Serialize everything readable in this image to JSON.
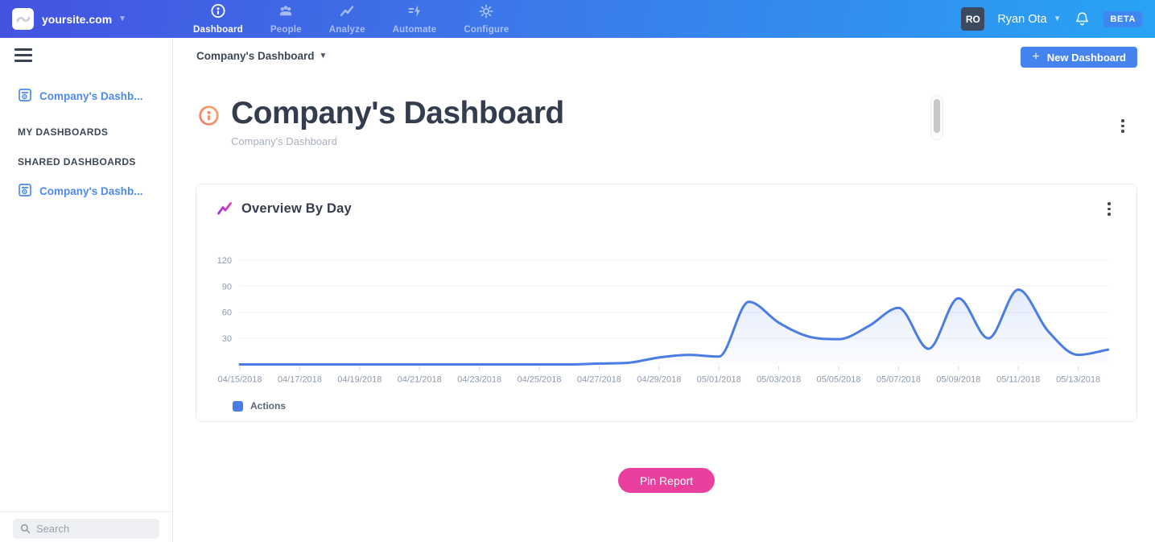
{
  "topnav": {
    "site": "yoursite.com",
    "items": [
      {
        "label": "Dashboard",
        "icon": "gauge-icon",
        "active": true
      },
      {
        "label": "People",
        "icon": "people-icon",
        "active": false
      },
      {
        "label": "Analyze",
        "icon": "trend-icon",
        "active": false
      },
      {
        "label": "Automate",
        "icon": "automation-icon",
        "active": false
      },
      {
        "label": "Configure",
        "icon": "gear-icon",
        "active": false
      }
    ],
    "user": {
      "initials": "RO",
      "name": "Ryan Ota"
    },
    "beta_label": "BETA"
  },
  "sidebar": {
    "pinned_item": {
      "label": "Company's Dashb...",
      "icon": "dashboard-report-icon"
    },
    "sections": [
      {
        "title": "MY DASHBOARDS",
        "items": []
      },
      {
        "title": "SHARED DASHBOARDS",
        "items": [
          {
            "label": "Company's Dashb...",
            "icon": "dashboard-report-icon"
          }
        ]
      }
    ],
    "search_placeholder": "Search"
  },
  "main": {
    "breadcrumb": "Company's Dashboard",
    "new_dashboard": {
      "plus": "+",
      "label": "New Dashboard"
    },
    "title": "Company's Dashboard",
    "subtitle": "Company's Dashboard",
    "pin_report_label": "Pin Report"
  },
  "card": {
    "title": "Overview By Day"
  },
  "chart_data": {
    "type": "line",
    "title": "Overview By Day",
    "x": [
      "04/15/2018",
      "04/16/2018",
      "04/17/2018",
      "04/18/2018",
      "04/19/2018",
      "04/20/2018",
      "04/21/2018",
      "04/22/2018",
      "04/23/2018",
      "04/24/2018",
      "04/25/2018",
      "04/26/2018",
      "04/27/2018",
      "04/28/2018",
      "04/29/2018",
      "04/30/2018",
      "05/01/2018",
      "05/02/2018",
      "05/03/2018",
      "05/04/2018",
      "05/05/2018",
      "05/06/2018",
      "05/07/2018",
      "05/08/2018",
      "05/09/2018",
      "05/10/2018",
      "05/11/2018",
      "05/12/2018",
      "05/13/2018",
      "05/14/2018"
    ],
    "x_tick_every": 2,
    "series": [
      {
        "name": "Actions",
        "color": "#4a7de4",
        "values": [
          0,
          0,
          0,
          0,
          0,
          0,
          0,
          0,
          0,
          0,
          0,
          0,
          1,
          2,
          8,
          11,
          9,
          72,
          48,
          32,
          29,
          44,
          65,
          18,
          76,
          30,
          86,
          38,
          11,
          17
        ]
      }
    ],
    "y_ticks": [
      30,
      60,
      90,
      120
    ],
    "ylim": [
      0,
      135
    ],
    "grid": true,
    "legend": [
      "Actions"
    ],
    "legend_position": "bottom-left",
    "smoothing": "monotone",
    "xlabel": "",
    "ylabel": ""
  },
  "colors": {
    "nav_gradient_start": "#4453e1",
    "nav_gradient_mid": "#3b7bea",
    "nav_gradient_end": "#28a3f3",
    "accent_blue": "#4584ee",
    "link_blue": "#4d8ae9",
    "pink": "#e93f9e",
    "line_blue": "#4a7de4",
    "dark_text": "#333d4d",
    "muted_text": "#a8b0bc",
    "grid_line": "#eef1f6",
    "axis_label": "#8d99ab",
    "beta_badge": "#3e86f0",
    "avatar_bg": "#3d4861"
  }
}
